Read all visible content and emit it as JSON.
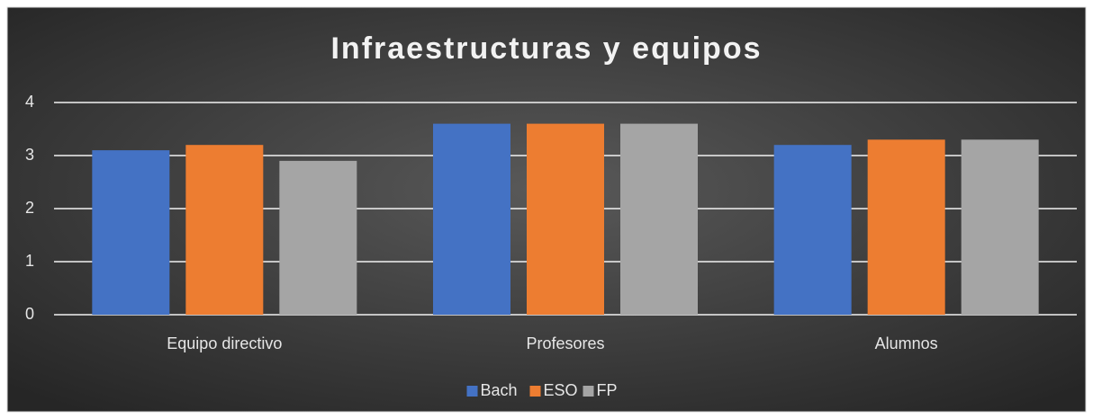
{
  "chart_data": {
    "type": "bar",
    "title": "Infraestructuras y equipos",
    "categories": [
      "Equipo directivo",
      "Profesores",
      "Alumnos"
    ],
    "series": [
      {
        "name": "Bach",
        "color": "#4472c4",
        "values": [
          3.1,
          3.6,
          3.2
        ]
      },
      {
        "name": "ESO",
        "color": "#ed7d31",
        "values": [
          3.2,
          3.6,
          3.3
        ]
      },
      {
        "name": "FP",
        "color": "#a5a5a5",
        "values": [
          2.9,
          3.6,
          3.3
        ]
      }
    ],
    "ylim": [
      0,
      4
    ],
    "yticks": [
      0,
      1,
      2,
      3,
      4
    ],
    "grid": true,
    "legend": "bottom"
  }
}
